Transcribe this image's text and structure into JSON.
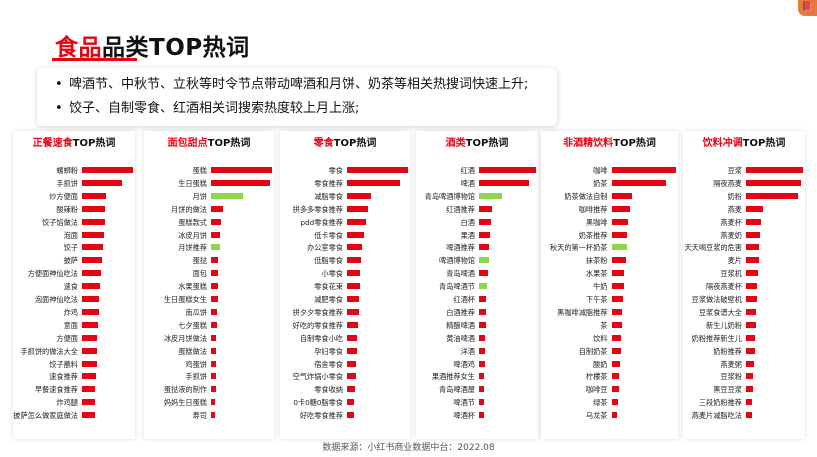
{
  "header": {
    "title_accent": "食品",
    "title_rest": "品类TOP热词",
    "logo_glyph": "📕"
  },
  "summary": {
    "bullet_symbol": "•",
    "bullets": [
      "啤酒节、中秋节、立秋等时令节点带动啤酒和月饼、奶茶等相关热搜词快速上升;",
      "饺子、自制零食、红酒相关词搜索热度较上月上涨;"
    ]
  },
  "footer": {
    "source": "数据来源：小红书商业数据中台：2022.08"
  },
  "colors": {
    "accent": "#e30613",
    "bar_red": "#e30613",
    "bar_green": "#8ed64a"
  },
  "chart_data": [
    {
      "type": "bar",
      "title_highlight": "正餐速食",
      "title_suffix": "TOP热词",
      "categories": [
        "螺蛳粉",
        "手抓饼",
        "炒方便面",
        "酸辣粉",
        "饺子馅做法",
        "泡面",
        "饺子",
        "披萨",
        "方便面神仙吃法",
        "速食",
        "泡面神仙吃法",
        "炸鸡",
        "意面",
        "方便面",
        "手抓饼的做法大全",
        "饺子蘸料",
        "速食推荐",
        "早餐速食推荐",
        "炸鸡腿",
        "披萨怎么做家庭做法"
      ],
      "values": [
        100,
        79,
        48,
        46,
        45,
        44,
        41,
        39,
        37,
        36,
        34,
        33,
        31,
        30,
        30,
        29,
        27,
        26,
        26,
        25
      ],
      "green": []
    },
    {
      "type": "bar",
      "title_highlight": "面包甜点",
      "title_suffix": "TOP热词",
      "categories": [
        "蛋糕",
        "生日蛋糕",
        "月饼",
        "月饼的做法",
        "蛋糕款式",
        "冰皮月饼",
        "月饼推荐",
        "蛋挞",
        "面包",
        "水果蛋糕",
        "生日蛋糕女生",
        "南瓜饼",
        "七夕蛋糕",
        "冰皮月饼做法",
        "蛋糕做法",
        "鸡蛋饼",
        "手抓饼",
        "蛋挞液的制作",
        "妈妈生日蛋糕",
        "寿司"
      ],
      "values": [
        100,
        97,
        52,
        19,
        17,
        15,
        14,
        12,
        12,
        11,
        11,
        10,
        10,
        9,
        9,
        8,
        8,
        8,
        7,
        7
      ],
      "green": [
        2,
        6
      ]
    },
    {
      "type": "bar",
      "title_highlight": "零食",
      "title_suffix": "TOP热词",
      "categories": [
        "零食",
        "零食推荐",
        "减脂零食",
        "拼多多零食推荐",
        "pdd零食推荐",
        "低卡零食",
        "办公室零食",
        "低脂零食",
        "小零食",
        "零食花束",
        "减肥零食",
        "拼夕夕零食推荐",
        "好吃的零食推荐",
        "自制零食小吃",
        "孕妇零食",
        "宿舍零食",
        "空气炸锅小零食",
        "零食收纳",
        "0卡0糖0脂零食",
        "好吃零食推荐"
      ],
      "values": [
        100,
        87,
        39,
        34,
        31,
        28,
        25,
        23,
        22,
        21,
        20,
        19,
        18,
        17,
        16,
        15,
        14,
        13,
        12,
        11
      ],
      "green": []
    },
    {
      "type": "bar",
      "title_highlight": "酒类",
      "title_suffix": "TOP热词",
      "categories": [
        "红酒",
        "啤酒",
        "青岛啤酒博物馆",
        "红酒推荐",
        "白酒",
        "果酒",
        "啤酒推荐",
        "啤酒博物馆",
        "青岛啤酒",
        "青岛啤酒节",
        "红酒杯",
        "白酒推荐",
        "精酿啤酒",
        "黄油啤酒",
        "洋酒",
        "啤酒鸡",
        "果酒推荐女生",
        "青岛啤酒屋",
        "啤酒节",
        "啤酒杯"
      ],
      "values": [
        100,
        87,
        40,
        22,
        21,
        20,
        18,
        17,
        15,
        14,
        13,
        12,
        12,
        11,
        10,
        10,
        9,
        9,
        8,
        8
      ],
      "green": [
        2,
        7,
        9
      ]
    },
    {
      "type": "bar",
      "title_highlight": "非酒精饮料",
      "title_suffix": "TOP热词",
      "categories": [
        "咖啡",
        "奶茶",
        "奶茶做法自制",
        "咖啡推荐",
        "黑咖啡",
        "奶茶推荐",
        "秋天的第一杯奶茶",
        "抹茶粉",
        "水果茶",
        "牛奶",
        "下午茶",
        "黑咖啡减脂推荐",
        "茶",
        "饮料",
        "自制奶茶",
        "酸奶",
        "柠檬茶",
        "咖啡豆",
        "绿茶",
        "乌龙茶"
      ],
      "values": [
        100,
        85,
        32,
        28,
        26,
        24,
        24,
        22,
        20,
        19,
        18,
        17,
        16,
        15,
        14,
        13,
        12,
        11,
        10,
        9
      ],
      "green": [
        6
      ]
    },
    {
      "type": "bar",
      "title_highlight": "饮料冲调",
      "title_suffix": "TOP热词",
      "categories": [
        "豆浆",
        "隔夜燕麦",
        "奶粉",
        "燕麦",
        "燕麦杯",
        "燕麦奶",
        "天天喝豆浆的危害",
        "麦片",
        "豆浆机",
        "隔夜燕麦杯",
        "豆浆做法破壁机",
        "豆浆食谱大全",
        "新生儿奶粉",
        "奶粉推荐新生儿",
        "奶粉推荐",
        "燕麦粥",
        "豆浆粉",
        "黑豆豆浆",
        "三段奶粉推荐",
        "燕麦片减脂吃法"
      ],
      "values": [
        100,
        96,
        92,
        29,
        27,
        25,
        23,
        22,
        21,
        20,
        19,
        18,
        17,
        16,
        15,
        14,
        13,
        12,
        11,
        10
      ],
      "green": []
    }
  ]
}
